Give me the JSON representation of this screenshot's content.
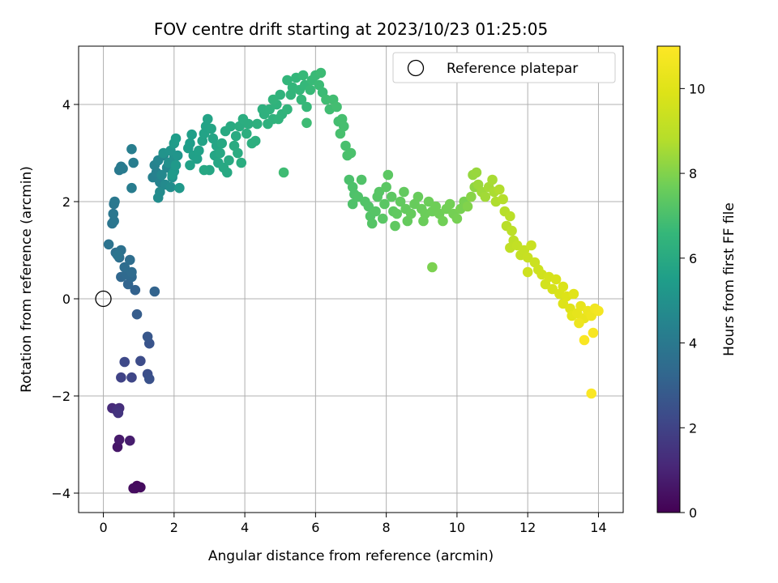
{
  "chart_data": {
    "type": "scatter",
    "title": "FOV centre drift starting at 2023/10/23 01:25:05",
    "xlabel": "Angular distance from reference (arcmin)",
    "ylabel": "Rotation from reference (arcmin)",
    "xlim": [
      -0.7,
      14.7
    ],
    "ylim": [
      -4.4,
      5.2
    ],
    "x_ticks": [
      0,
      2,
      4,
      6,
      8,
      10,
      12,
      14
    ],
    "y_ticks": [
      -4,
      -2,
      0,
      2,
      4
    ],
    "grid": true,
    "legend": {
      "position": "top-right",
      "label": "Reference platepar"
    },
    "reference_point": {
      "x": 0,
      "y": 0
    },
    "colorbar": {
      "label": "Hours from first FF file",
      "range": [
        0,
        11
      ],
      "ticks": [
        0,
        2,
        4,
        6,
        8,
        10
      ],
      "colormap": "viridis"
    },
    "points": [
      [
        0.9,
        -3.9,
        0.1
      ],
      [
        0.95,
        -3.85,
        0.2
      ],
      [
        1.05,
        -3.88,
        0.3
      ],
      [
        0.85,
        -3.9,
        0.35
      ],
      [
        0.4,
        -3.05,
        0.6
      ],
      [
        0.45,
        -2.9,
        0.7
      ],
      [
        0.75,
        -2.92,
        0.8
      ],
      [
        0.25,
        -2.25,
        1.2
      ],
      [
        0.45,
        -2.25,
        1.3
      ],
      [
        0.38,
        -2.3,
        1.4
      ],
      [
        0.42,
        -2.35,
        1.5
      ],
      [
        0.5,
        -1.62,
        2.0
      ],
      [
        0.8,
        -1.62,
        2.1
      ],
      [
        0.6,
        -1.3,
        2.2
      ],
      [
        1.05,
        -1.28,
        2.3
      ],
      [
        1.25,
        -1.55,
        2.4
      ],
      [
        1.3,
        -1.65,
        2.5
      ],
      [
        1.3,
        -0.92,
        2.6
      ],
      [
        1.25,
        -0.78,
        2.7
      ],
      [
        0.95,
        -0.32,
        2.9
      ],
      [
        0.9,
        0.18,
        3.1
      ],
      [
        1.45,
        0.15,
        3.15
      ],
      [
        0.7,
        0.3,
        3.2
      ],
      [
        0.5,
        0.45,
        3.3
      ],
      [
        0.8,
        0.45,
        3.35
      ],
      [
        0.65,
        0.5,
        3.4
      ],
      [
        0.8,
        0.55,
        3.45
      ],
      [
        0.6,
        0.65,
        3.5
      ],
      [
        0.75,
        0.8,
        3.55
      ],
      [
        0.45,
        0.85,
        3.6
      ],
      [
        0.35,
        0.95,
        3.65
      ],
      [
        0.5,
        1.0,
        3.7
      ],
      [
        0.15,
        1.12,
        3.75
      ],
      [
        0.4,
        0.9,
        3.8
      ],
      [
        0.25,
        1.55,
        3.85
      ],
      [
        0.3,
        1.6,
        3.9
      ],
      [
        0.28,
        1.75,
        3.92
      ],
      [
        0.3,
        1.95,
        3.95
      ],
      [
        0.32,
        2.0,
        3.98
      ],
      [
        0.45,
        2.65,
        4.0
      ],
      [
        0.5,
        2.72,
        4.05
      ],
      [
        0.55,
        2.68,
        4.1
      ],
      [
        0.8,
        2.28,
        4.15
      ],
      [
        0.85,
        2.8,
        4.2
      ],
      [
        0.8,
        3.08,
        4.25
      ],
      [
        1.4,
        2.5,
        4.3
      ],
      [
        1.5,
        2.6,
        4.35
      ],
      [
        1.45,
        2.75,
        4.4
      ],
      [
        1.6,
        2.4,
        4.45
      ],
      [
        1.55,
        2.85,
        4.5
      ],
      [
        1.7,
        2.95,
        4.55
      ],
      [
        1.8,
        2.7,
        4.6
      ],
      [
        1.65,
        2.55,
        4.65
      ],
      [
        1.75,
        2.35,
        4.7
      ],
      [
        1.6,
        2.2,
        4.75
      ],
      [
        1.55,
        2.08,
        4.8
      ],
      [
        1.9,
        2.3,
        4.85
      ],
      [
        1.95,
        2.5,
        4.9
      ],
      [
        1.85,
        2.8,
        4.95
      ],
      [
        2.0,
        2.9,
        5.0
      ],
      [
        1.7,
        3.0,
        5.05
      ],
      [
        1.9,
        3.05,
        5.1
      ],
      [
        2.1,
        2.95,
        5.15
      ],
      [
        2.0,
        2.62,
        5.2
      ],
      [
        2.15,
        2.28,
        5.25
      ],
      [
        2.05,
        2.75,
        5.3
      ],
      [
        1.95,
        2.55,
        5.35
      ],
      [
        2.0,
        3.2,
        5.4
      ],
      [
        2.05,
        3.3,
        5.45
      ],
      [
        2.4,
        3.1,
        5.5
      ],
      [
        2.45,
        3.2,
        5.52
      ],
      [
        2.5,
        3.38,
        5.55
      ],
      [
        2.55,
        2.95,
        5.58
      ],
      [
        2.65,
        2.88,
        5.6
      ],
      [
        2.7,
        3.05,
        5.62
      ],
      [
        2.45,
        2.75,
        5.65
      ],
      [
        2.8,
        3.25,
        5.68
      ],
      [
        2.85,
        3.4,
        5.7
      ],
      [
        2.9,
        3.55,
        5.72
      ],
      [
        2.95,
        3.7,
        5.74
      ],
      [
        3.05,
        3.5,
        5.76
      ],
      [
        3.1,
        3.3,
        5.78
      ],
      [
        3.2,
        3.15,
        5.8
      ],
      [
        3.15,
        2.95,
        5.82
      ],
      [
        3.25,
        2.8,
        5.84
      ],
      [
        3.0,
        2.65,
        5.86
      ],
      [
        2.85,
        2.65,
        5.88
      ],
      [
        3.3,
        3.0,
        5.9
      ],
      [
        3.35,
        3.2,
        5.92
      ],
      [
        3.4,
        2.7,
        5.94
      ],
      [
        3.5,
        2.6,
        5.96
      ],
      [
        3.55,
        2.85,
        5.98
      ],
      [
        3.45,
        3.45,
        6.0
      ],
      [
        3.6,
        3.55,
        6.02
      ],
      [
        3.7,
        3.15,
        6.04
      ],
      [
        3.75,
        3.35,
        6.06
      ],
      [
        3.8,
        3.0,
        6.08
      ],
      [
        3.9,
        2.8,
        6.1
      ],
      [
        3.85,
        3.55,
        6.12
      ],
      [
        3.95,
        3.7,
        6.14
      ],
      [
        4.1,
        3.6,
        6.16
      ],
      [
        4.05,
        3.4,
        6.18
      ],
      [
        4.2,
        3.2,
        6.2
      ],
      [
        4.3,
        3.25,
        6.22
      ],
      [
        4.35,
        3.6,
        6.24
      ],
      [
        4.5,
        3.9,
        6.26
      ],
      [
        4.55,
        3.8,
        6.28
      ],
      [
        4.65,
        3.6,
        6.3
      ],
      [
        4.7,
        3.9,
        6.32
      ],
      [
        4.8,
        3.7,
        6.34
      ],
      [
        4.9,
        4.0,
        6.36
      ],
      [
        5.0,
        4.2,
        6.38
      ],
      [
        5.05,
        3.8,
        6.4
      ],
      [
        4.95,
        3.7,
        6.42
      ],
      [
        4.8,
        4.1,
        6.44
      ],
      [
        5.2,
        3.9,
        6.46
      ],
      [
        5.3,
        4.2,
        6.48
      ],
      [
        5.2,
        4.5,
        6.5
      ],
      [
        5.35,
        4.35,
        6.52
      ],
      [
        5.45,
        4.55,
        6.54
      ],
      [
        5.55,
        4.3,
        6.56
      ],
      [
        5.6,
        4.1,
        6.58
      ],
      [
        5.7,
        4.4,
        6.6
      ],
      [
        5.75,
        3.95,
        6.62
      ],
      [
        5.65,
        4.6,
        6.64
      ],
      [
        5.85,
        4.3,
        6.66
      ],
      [
        5.9,
        4.5,
        6.68
      ],
      [
        6.0,
        4.6,
        6.7
      ],
      [
        6.1,
        4.4,
        6.72
      ],
      [
        6.2,
        4.25,
        6.74
      ],
      [
        6.15,
        4.65,
        6.76
      ],
      [
        5.75,
        3.62,
        6.78
      ],
      [
        5.1,
        2.6,
        6.8
      ],
      [
        6.3,
        4.1,
        6.82
      ],
      [
        6.4,
        3.9,
        6.84
      ],
      [
        6.5,
        4.1,
        6.86
      ],
      [
        6.6,
        3.95,
        6.88
      ],
      [
        6.65,
        3.65,
        6.9
      ],
      [
        6.75,
        3.7,
        6.92
      ],
      [
        6.8,
        3.55,
        6.94
      ],
      [
        6.7,
        3.4,
        6.96
      ],
      [
        6.85,
        3.15,
        6.98
      ],
      [
        6.9,
        2.95,
        7.0
      ],
      [
        7.0,
        3.0,
        7.02
      ],
      [
        6.95,
        2.45,
        7.04
      ],
      [
        7.05,
        2.3,
        7.06
      ],
      [
        7.1,
        2.15,
        7.08
      ],
      [
        7.05,
        1.95,
        7.1
      ],
      [
        7.2,
        2.1,
        7.12
      ],
      [
        7.3,
        2.45,
        7.14
      ],
      [
        7.4,
        2.0,
        7.16
      ],
      [
        7.5,
        1.9,
        7.18
      ],
      [
        7.55,
        1.7,
        7.2
      ],
      [
        7.6,
        1.55,
        7.22
      ],
      [
        7.7,
        1.8,
        7.24
      ],
      [
        7.75,
        2.1,
        7.26
      ],
      [
        7.8,
        2.2,
        7.28
      ],
      [
        7.9,
        1.65,
        7.3
      ],
      [
        7.95,
        1.95,
        7.32
      ],
      [
        8.0,
        2.3,
        7.34
      ],
      [
        8.05,
        2.55,
        7.36
      ],
      [
        8.15,
        2.1,
        7.38
      ],
      [
        8.2,
        1.8,
        7.4
      ],
      [
        8.25,
        1.5,
        7.42
      ],
      [
        8.3,
        1.75,
        7.44
      ],
      [
        8.4,
        2.0,
        7.46
      ],
      [
        8.5,
        2.2,
        7.48
      ],
      [
        8.55,
        1.85,
        7.5
      ],
      [
        8.6,
        1.6,
        7.52
      ],
      [
        8.7,
        1.75,
        7.54
      ],
      [
        8.8,
        1.95,
        7.56
      ],
      [
        8.9,
        2.1,
        7.58
      ],
      [
        9.0,
        1.85,
        7.6
      ],
      [
        9.05,
        1.6,
        7.62
      ],
      [
        9.1,
        1.75,
        7.64
      ],
      [
        9.2,
        2.0,
        7.66
      ],
      [
        9.3,
        1.8,
        7.68
      ],
      [
        9.4,
        1.9,
        7.7
      ],
      [
        9.5,
        1.75,
        7.72
      ],
      [
        9.6,
        1.6,
        7.74
      ],
      [
        9.7,
        1.85,
        7.76
      ],
      [
        9.8,
        1.95,
        7.78
      ],
      [
        9.9,
        1.75,
        7.8
      ],
      [
        10.0,
        1.65,
        7.82
      ],
      [
        10.1,
        1.85,
        7.84
      ],
      [
        10.2,
        2.0,
        7.86
      ],
      [
        9.3,
        0.65,
        7.9
      ],
      [
        10.3,
        1.9,
        8.0
      ],
      [
        10.4,
        2.1,
        8.1
      ],
      [
        10.5,
        2.3,
        8.2
      ],
      [
        10.45,
        2.55,
        8.3
      ],
      [
        10.55,
        2.6,
        8.35
      ],
      [
        10.6,
        2.35,
        8.4
      ],
      [
        10.7,
        2.2,
        8.45
      ],
      [
        10.8,
        2.1,
        8.5
      ],
      [
        10.9,
        2.3,
        8.55
      ],
      [
        11.0,
        2.45,
        8.6
      ],
      [
        11.05,
        2.2,
        8.65
      ],
      [
        11.1,
        2.0,
        8.7
      ],
      [
        11.2,
        2.25,
        8.75
      ],
      [
        11.3,
        2.05,
        8.8
      ],
      [
        11.35,
        1.8,
        8.85
      ],
      [
        11.4,
        1.5,
        8.9
      ],
      [
        11.5,
        1.7,
        8.95
      ],
      [
        11.55,
        1.4,
        9.0
      ],
      [
        11.6,
        1.2,
        9.05
      ],
      [
        11.5,
        1.05,
        9.1
      ],
      [
        11.7,
        1.1,
        9.15
      ],
      [
        11.8,
        0.9,
        9.2
      ],
      [
        11.9,
        1.0,
        9.25
      ],
      [
        12.0,
        0.85,
        9.3
      ],
      [
        12.1,
        1.1,
        9.35
      ],
      [
        12.2,
        0.75,
        9.4
      ],
      [
        12.3,
        0.6,
        9.45
      ],
      [
        12.0,
        0.55,
        9.5
      ],
      [
        12.4,
        0.5,
        9.55
      ],
      [
        12.5,
        0.3,
        9.6
      ],
      [
        12.6,
        0.45,
        9.65
      ],
      [
        12.7,
        0.2,
        9.7
      ],
      [
        12.8,
        0.4,
        9.75
      ],
      [
        12.9,
        0.1,
        9.8
      ],
      [
        13.0,
        0.25,
        9.85
      ],
      [
        13.1,
        0.05,
        9.9
      ],
      [
        13.0,
        -0.1,
        9.95
      ],
      [
        13.2,
        -0.2,
        10.0
      ],
      [
        13.3,
        0.1,
        10.05
      ],
      [
        13.25,
        -0.35,
        10.1
      ],
      [
        13.4,
        -0.3,
        10.2
      ],
      [
        13.5,
        -0.15,
        10.25
      ],
      [
        13.6,
        -0.4,
        10.3
      ],
      [
        13.7,
        -0.25,
        10.4
      ],
      [
        13.45,
        -0.5,
        10.45
      ],
      [
        13.8,
        -0.35,
        10.5
      ],
      [
        13.9,
        -0.2,
        10.6
      ],
      [
        14.0,
        -0.25,
        10.7
      ],
      [
        13.85,
        -0.7,
        10.8
      ],
      [
        13.6,
        -0.85,
        10.85
      ],
      [
        13.8,
        -1.95,
        10.9
      ]
    ]
  }
}
